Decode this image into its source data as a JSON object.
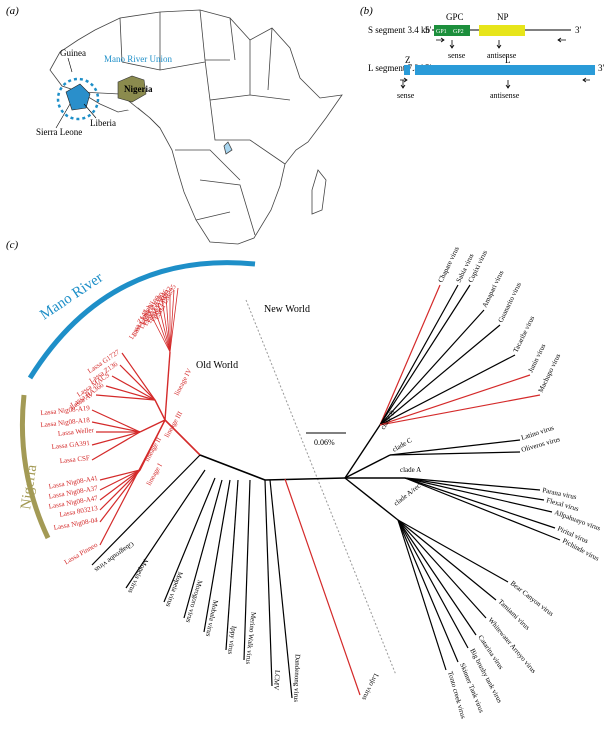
{
  "panel_labels": {
    "a": "(a)",
    "b": "(b)",
    "c": "(c)"
  },
  "map": {
    "labels": {
      "guinea": "Guinea",
      "mano_river_union": "Mano River Union",
      "nigeria": "Nigeria",
      "sierra_leone": "Sierra Leone",
      "liberia": "Liberia"
    },
    "colors": {
      "mano_river": "#1e8fc8",
      "nigeria": "#8b8b4e"
    }
  },
  "genome": {
    "s_segment": {
      "label": "S segment 3.4 kb",
      "gpc": "GPC",
      "np": "NP",
      "gp1": "GP1",
      "gp2": "GP2",
      "sense": "sense",
      "antisense": "antisense",
      "five_prime": "5′",
      "three_prime": "3′"
    },
    "l_segment": {
      "label": "L segment 7.3 kb",
      "z": "Z",
      "l": "L",
      "sense": "sense",
      "antisense": "antisense",
      "five_prime": "5′",
      "three_prime": "3′"
    },
    "colors": {
      "gpc": "#1c8f3c",
      "np": "#e7e51a",
      "l": "#2a9bd8"
    }
  },
  "tree": {
    "arc_labels": {
      "mano_river": "Mano River",
      "nigeria": "Nigeria"
    },
    "region_labels": {
      "new_world": "New World",
      "old_world": "Old World"
    },
    "scale_bar": "0.06%",
    "lineages": [
      "lineage IV",
      "lineage III",
      "lineage II",
      "lineage I"
    ],
    "clades": [
      "clade B",
      "clade C",
      "clade A",
      "clade A/rec"
    ],
    "lassa_leaves": [
      "Lassa Z148",
      "Lassa Josiah",
      "Lassa NL",
      "Lassa G1190",
      "Lassa G1180",
      "Lassa G1646",
      "Lassa LM032",
      "Lassa LM395",
      "Lassa G1727",
      "Lassa Z136",
      "Lassa MACS",
      "Lassa BA366",
      "Lassa AV",
      "Lassa Nig08-A19",
      "Lassa Nig08-A18",
      "Lassa Weller",
      "Lassa GA391",
      "Lassa CSF",
      "Lassa Nig08-A41",
      "Lassa Nig08-A37",
      "Lassa Nig08-A47",
      "Lassa 803213",
      "Lassa Nig08-04",
      "Lassa Pinneo"
    ],
    "old_world_leaves": [
      "Gbagroube virus",
      "Mopeia virus",
      "Mopeia virus",
      "Morogoro virus",
      "Mobala virus",
      "Ippy virus",
      "Merino Walk virus",
      "LCMV",
      "Dandenong virus",
      "Lujo virus"
    ],
    "new_world_leaves": [
      "Chapare virus",
      "Sabia virus",
      "Cupixi virus",
      "Amapari virus",
      "Guanarito virus",
      "Tacaribe virus",
      "Junin virus",
      "Machupo virus",
      "Latino virus",
      "Oliveros virus",
      "Parana virus",
      "Flexal virus",
      "Allpahuayo virus",
      "Pirital virus",
      "Pichinde virus",
      "Bear Canyon virus",
      "Tamiami virus",
      "Whitewater Arroyo virus",
      "Catarina virus",
      "Big brushy tank virus",
      "Skinner Tank virus",
      "Tonto creek virus"
    ],
    "colors": {
      "lassa": "#d42a2a",
      "pathogen": "#d42a2a",
      "other": "#000000",
      "arc_mano": "#1e8fc8",
      "arc_nigeria": "#a39a55"
    }
  }
}
